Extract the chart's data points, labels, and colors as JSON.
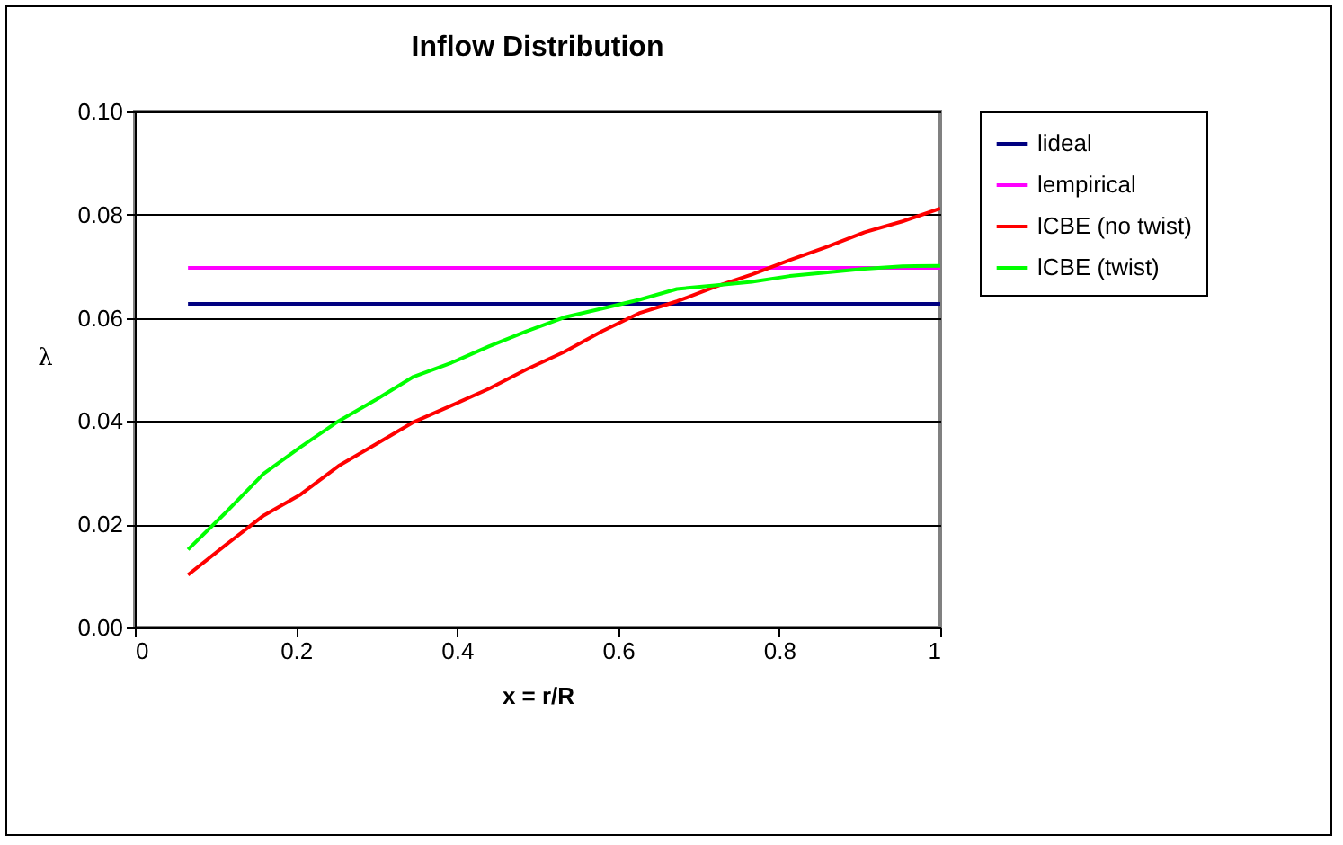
{
  "chart_data": {
    "type": "line",
    "title": "Inflow Distribution",
    "xlabel": "x = r/R",
    "ylabel": "λ",
    "x": [
      0.066,
      0.113,
      0.16,
      0.206,
      0.253,
      0.3,
      0.346,
      0.393,
      0.44,
      0.486,
      0.533,
      0.58,
      0.626,
      0.673,
      0.72,
      0.766,
      0.813,
      0.86,
      0.906,
      0.953,
      1.0
    ],
    "series": [
      {
        "name": "lideal",
        "color": "#000080",
        "values": [
          0.0627,
          0.0627,
          0.0627,
          0.0627,
          0.0627,
          0.0627,
          0.0627,
          0.0627,
          0.0627,
          0.0627,
          0.0627,
          0.0627,
          0.0627,
          0.0627,
          0.0627,
          0.0627,
          0.0627,
          0.0627,
          0.0627,
          0.0627,
          0.0627
        ]
      },
      {
        "name": "lempirical",
        "color": "#ff00ff",
        "values": [
          0.0697,
          0.0697,
          0.0697,
          0.0697,
          0.0697,
          0.0697,
          0.0697,
          0.0697,
          0.0697,
          0.0697,
          0.0697,
          0.0697,
          0.0697,
          0.0697,
          0.0697,
          0.0697,
          0.0697,
          0.0697,
          0.0697,
          0.0697,
          0.0697
        ]
      },
      {
        "name": "lCBE (no twist)",
        "color": "#ff0000",
        "values": [
          0.0102,
          0.016,
          0.0217,
          0.0258,
          0.0313,
          0.0356,
          0.0398,
          0.043,
          0.0463,
          0.05,
          0.0534,
          0.0574,
          0.0609,
          0.0632,
          0.066,
          0.0684,
          0.0712,
          0.0738,
          0.0766,
          0.0787,
          0.0812
        ]
      },
      {
        "name": "lCBE (twist)",
        "color": "#00ff00",
        "values": [
          0.0151,
          0.0223,
          0.0298,
          0.035,
          0.04,
          0.0442,
          0.0486,
          0.0513,
          0.0545,
          0.0574,
          0.0601,
          0.0618,
          0.0635,
          0.0656,
          0.0663,
          0.067,
          0.0681,
          0.0688,
          0.0695,
          0.07,
          0.0701
        ]
      }
    ],
    "xlim": [
      0,
      1
    ],
    "xticks": [
      0,
      0.2,
      0.4,
      0.6,
      0.8,
      1
    ],
    "ylim": [
      0,
      0.1
    ],
    "yticks": [
      {
        "value": 0,
        "label": "0.00"
      },
      {
        "value": 0.02,
        "label": "0.02"
      },
      {
        "value": 0.04,
        "label": "0.04"
      },
      {
        "value": 0.06,
        "label": "0.06"
      },
      {
        "value": 0.08,
        "label": "0.08"
      },
      {
        "value": 0.1,
        "label": "0.10"
      }
    ],
    "grid": "y",
    "legend": "right"
  }
}
